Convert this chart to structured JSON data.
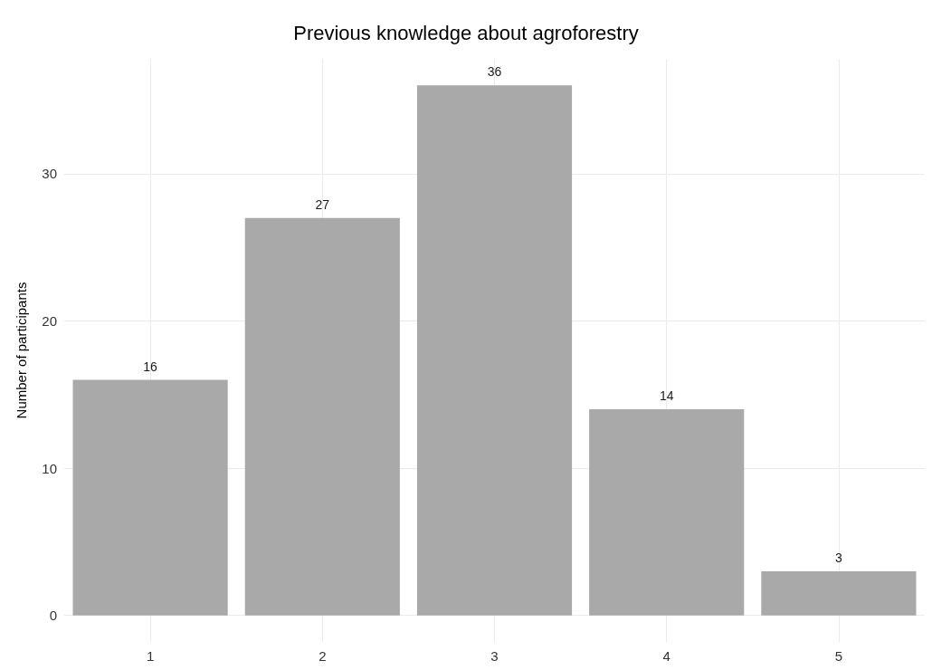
{
  "chart_data": {
    "type": "bar",
    "title": "Previous knowledge about agroforestry",
    "ylabel": "Number of participants",
    "categories": [
      "1",
      "2",
      "3",
      "4",
      "5"
    ],
    "values": [
      16,
      27,
      36,
      14,
      3
    ],
    "color": "#a9a9a9",
    "ylim": [
      -1.8,
      37.8
    ],
    "yticks": [
      0,
      10,
      20,
      30
    ],
    "grid": true,
    "data_labels": true
  }
}
